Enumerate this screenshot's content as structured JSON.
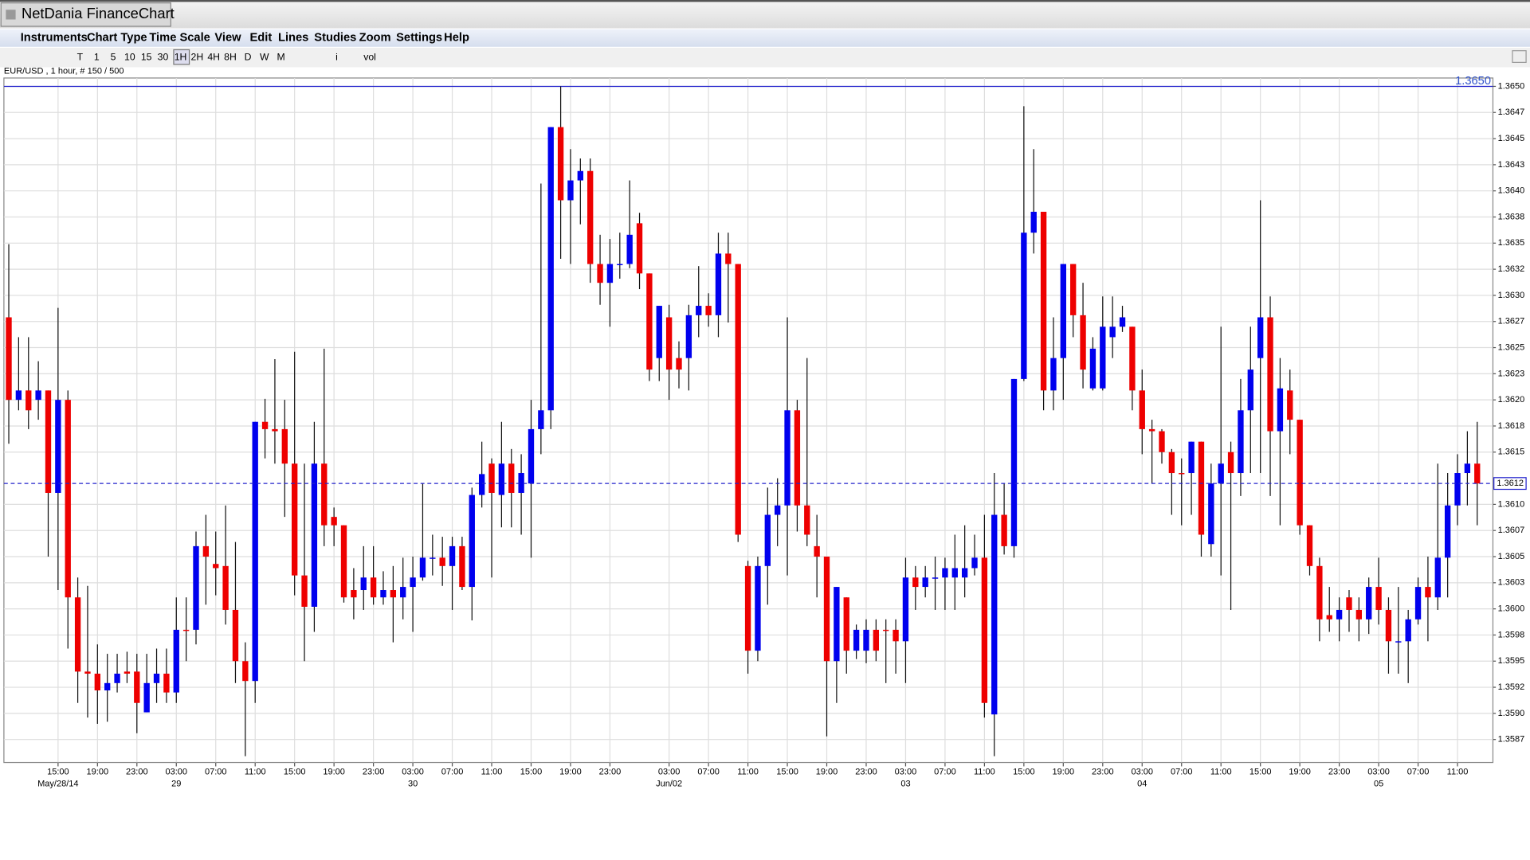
{
  "window": {
    "title": "NetDania FinanceChart"
  },
  "menu": [
    "Instruments",
    "Chart Type",
    "Time Scale",
    "View",
    "Edit",
    "Lines",
    "Studies",
    "Zoom",
    "Settings",
    "Help"
  ],
  "toolbar": [
    "T",
    "1",
    "5",
    "10",
    "15",
    "30",
    "1H",
    "2H",
    "4H",
    "8H",
    "D",
    "W",
    "M",
    "i",
    "vol"
  ],
  "chart_data": {
    "type": "candlestick",
    "subtitle": "EUR/USD , 1 hour, # 150 / 500",
    "up_color": "#0000ee",
    "down_color": "#ee0000",
    "grid": true,
    "ylim": [
      1.35853,
      1.36508
    ],
    "yticks": [
      {
        "value": 1.365,
        "label": "1.3650"
      },
      {
        "value": 1.36475,
        "label": "1.3647"
      },
      {
        "value": 1.3645,
        "label": "1.3645"
      },
      {
        "value": 1.36425,
        "label": "1.3643"
      },
      {
        "value": 1.364,
        "label": "1.3640"
      },
      {
        "value": 1.36375,
        "label": "1.3638"
      },
      {
        "value": 1.3635,
        "label": "1.3635"
      },
      {
        "value": 1.36325,
        "label": "1.3632"
      },
      {
        "value": 1.363,
        "label": "1.3630"
      },
      {
        "value": 1.36275,
        "label": "1.3627"
      },
      {
        "value": 1.3625,
        "label": "1.3625"
      },
      {
        "value": 1.36225,
        "label": "1.3623"
      },
      {
        "value": 1.362,
        "label": "1.3620"
      },
      {
        "value": 1.36175,
        "label": "1.3618"
      },
      {
        "value": 1.3615,
        "label": "1.3615"
      },
      {
        "value": 1.361,
        "label": "1.3610"
      },
      {
        "value": 1.36075,
        "label": "1.3607"
      },
      {
        "value": 1.3605,
        "label": "1.3605"
      },
      {
        "value": 1.36025,
        "label": "1.3603"
      },
      {
        "value": 1.36,
        "label": "1.3600"
      },
      {
        "value": 1.35975,
        "label": "1.3598"
      },
      {
        "value": 1.3595,
        "label": "1.3595"
      },
      {
        "value": 1.35925,
        "label": "1.3592"
      },
      {
        "value": 1.359,
        "label": "1.3590"
      },
      {
        "value": 1.35875,
        "label": "1.3587"
      }
    ],
    "reference_line": {
      "value": 1.365,
      "label": "1.3650"
    },
    "last_price": {
      "value": 1.3612,
      "label": "1.3612"
    },
    "categories": [
      null,
      null,
      null,
      null,
      null,
      "15:00",
      null,
      null,
      null,
      "19:00",
      null,
      null,
      null,
      "23:00",
      null,
      null,
      null,
      "03:00",
      null,
      null,
      null,
      "07:00",
      null,
      null,
      null,
      "11:00",
      null,
      null,
      null,
      "15:00",
      null,
      null,
      null,
      "19:00",
      null,
      null,
      null,
      "23:00",
      null,
      null,
      null,
      "03:00",
      null,
      null,
      null,
      "07:00",
      null,
      null,
      null,
      "11:00",
      null,
      null,
      null,
      "15:00",
      null,
      null,
      null,
      "19:00",
      null,
      null,
      null,
      "23:00",
      null,
      null,
      null,
      null,
      null,
      "03:00",
      null,
      null,
      null,
      "07:00",
      null,
      null,
      null,
      "11:00",
      null,
      null,
      null,
      "15:00",
      null,
      null,
      null,
      "19:00",
      null,
      null,
      null,
      "23:00",
      null,
      null,
      null,
      "03:00",
      null,
      null,
      null,
      "07:00",
      null,
      null,
      null,
      "11:00",
      null,
      null,
      null,
      "15:00",
      null,
      null,
      null,
      "19:00",
      null,
      null,
      null,
      "23:00",
      null,
      null,
      null,
      "03:00",
      null,
      null,
      null,
      "07:00",
      null,
      null,
      null,
      "11:00",
      null,
      null,
      null,
      "15:00",
      null,
      null,
      null,
      "19:00",
      null,
      null,
      null,
      "23:00",
      null,
      null,
      null,
      "03:00",
      null,
      null,
      null,
      "07:00",
      null,
      null,
      null,
      "11:00",
      null,
      null
    ],
    "category_dates": [
      null,
      null,
      null,
      null,
      null,
      "May/28/14",
      null,
      null,
      null,
      null,
      null,
      null,
      null,
      null,
      null,
      null,
      null,
      "29",
      null,
      null,
      null,
      null,
      null,
      null,
      null,
      null,
      null,
      null,
      null,
      null,
      null,
      null,
      null,
      null,
      null,
      null,
      null,
      null,
      null,
      null,
      null,
      "30",
      null,
      null,
      null,
      null,
      null,
      null,
      null,
      null,
      null,
      null,
      null,
      null,
      null,
      null,
      null,
      null,
      null,
      null,
      null,
      null,
      null,
      null,
      null,
      null,
      null,
      "Jun/02",
      null,
      null,
      null,
      null,
      null,
      null,
      null,
      null,
      null,
      null,
      null,
      null,
      null,
      null,
      null,
      null,
      null,
      null,
      null,
      null,
      null,
      null,
      null,
      "03",
      null,
      null,
      null,
      null,
      null,
      null,
      null,
      null,
      null,
      null,
      null,
      null,
      null,
      null,
      null,
      null,
      null,
      null,
      null,
      null,
      null,
      null,
      null,
      "04",
      null,
      null,
      null,
      null,
      null,
      null,
      null,
      null,
      null,
      null,
      null,
      null,
      null,
      null,
      null,
      null,
      null,
      null,
      null,
      null,
      null,
      null,
      null,
      "05",
      null,
      null,
      null,
      null,
      null,
      null,
      null,
      null,
      null,
      null
    ],
    "open": [
      1.36279,
      1.362,
      1.36209,
      1.362,
      1.36209,
      1.36111,
      1.362,
      1.36011,
      1.3594,
      1.35938,
      1.35922,
      1.35929,
      1.3594,
      1.3594,
      1.35901,
      1.35929,
      1.35938,
      1.3592,
      1.3598,
      1.3598,
      1.3606,
      1.36043,
      1.36041,
      1.35999,
      1.3595,
      1.35931,
      1.36179,
      1.36172,
      1.36172,
      1.36139,
      1.36032,
      1.36002,
      1.36139,
      1.36088,
      1.3608,
      1.36018,
      1.36018,
      1.3603,
      1.36011,
      1.36018,
      1.36011,
      1.36021,
      1.3603,
      1.36049,
      1.36049,
      1.36041,
      1.3606,
      1.36021,
      1.36109,
      1.36139,
      1.36109,
      1.36139,
      1.36111,
      1.3612,
      1.36172,
      1.3619,
      1.36461,
      1.36391,
      1.3641,
      1.36419,
      1.3633,
      1.36312,
      1.3633,
      1.3633,
      1.36369,
      1.36321,
      1.3624,
      1.36279,
      1.3624,
      1.3624,
      1.36281,
      1.3629,
      1.36281,
      1.3634,
      1.3633,
      1.36041,
      1.3596,
      1.36041,
      1.3609,
      1.36099,
      1.3619,
      1.36099,
      1.3606,
      1.3605,
      1.3595,
      1.36011,
      1.3596,
      1.3596,
      1.3598,
      1.3598,
      1.3598,
      1.35969,
      1.3603,
      1.36021,
      1.3603,
      1.3603,
      1.3603,
      1.3603,
      1.36039,
      1.36049,
      1.35899,
      1.3609,
      1.3606,
      1.3622,
      1.3636,
      1.3638,
      1.36209,
      1.3624,
      1.3633,
      1.36281,
      1.36211,
      1.36211,
      1.3626,
      1.3627,
      1.3627,
      1.36209,
      1.36172,
      1.3617,
      1.3615,
      1.3613,
      1.3613,
      1.3616,
      1.36062,
      1.3612,
      1.3615,
      1.3613,
      1.3619,
      1.3624,
      1.36279,
      1.3617,
      1.36209,
      1.36181,
      1.3608,
      1.36041,
      1.35994,
      1.3599,
      1.36011,
      1.35999,
      1.3599,
      1.36021,
      1.35999,
      1.35969,
      1.35969,
      1.3599,
      1.36021,
      1.36011,
      1.36049,
      1.36099,
      1.3613,
      1.36139
    ],
    "high": [
      1.36349,
      1.3626,
      1.3626,
      1.36237,
      1.36209,
      1.36288,
      1.36209,
      1.3603,
      1.36022,
      1.35966,
      1.35957,
      1.35957,
      1.35959,
      1.35957,
      1.35957,
      1.35962,
      1.35962,
      1.36011,
      1.36011,
      1.36074,
      1.3609,
      1.36074,
      1.36099,
      1.36064,
      1.35968,
      1.36179,
      1.36201,
      1.36239,
      1.362,
      1.36246,
      1.36139,
      1.36179,
      1.36249,
      1.36097,
      1.3608,
      1.36039,
      1.3606,
      1.3606,
      1.36036,
      1.36041,
      1.36049,
      1.3605,
      1.3612,
      1.36071,
      1.36069,
      1.36069,
      1.36069,
      1.36116,
      1.3616,
      1.36144,
      1.36179,
      1.36153,
      1.36148,
      1.362,
      1.36407,
      1.36461,
      1.365,
      1.3644,
      1.36431,
      1.36431,
      1.36358,
      1.36354,
      1.3636,
      1.3641,
      1.36379,
      1.36321,
      1.3629,
      1.36291,
      1.36256,
      1.36291,
      1.36328,
      1.36302,
      1.3636,
      1.3636,
      1.3633,
      1.36046,
      1.3605,
      1.36116,
      1.36125,
      1.36279,
      1.362,
      1.3624,
      1.3609,
      1.3605,
      1.36021,
      1.36011,
      1.35985,
      1.3599,
      1.3599,
      1.3599,
      1.3599,
      1.36049,
      1.36041,
      1.36041,
      1.3605,
      1.36049,
      1.36071,
      1.3608,
      1.36071,
      1.3609,
      1.3613,
      1.3612,
      1.3622,
      1.36481,
      1.3644,
      1.3638,
      1.36279,
      1.3633,
      1.3633,
      1.36312,
      1.3626,
      1.36299,
      1.36299,
      1.3629,
      1.3627,
      1.36229,
      1.36181,
      1.36172,
      1.36153,
      1.36144,
      1.3616,
      1.3616,
      1.36139,
      1.3627,
      1.3616,
      1.3622,
      1.3627,
      1.36391,
      1.36299,
      1.3624,
      1.36229,
      1.36181,
      1.3608,
      1.36049,
      1.36021,
      1.36011,
      1.36018,
      1.36011,
      1.3603,
      1.36049,
      1.36011,
      1.36021,
      1.35999,
      1.3603,
      1.3605,
      1.36139,
      1.3613,
      1.36148,
      1.3617,
      1.36179
    ],
    "low": [
      1.36158,
      1.3619,
      1.36172,
      1.36181,
      1.3605,
      1.36018,
      1.35962,
      1.3591,
      1.35896,
      1.3589,
      1.35892,
      1.3592,
      1.35929,
      1.35881,
      1.35901,
      1.3591,
      1.3591,
      1.3591,
      1.3595,
      1.35966,
      1.36004,
      1.36013,
      1.35985,
      1.35929,
      1.35859,
      1.3591,
      1.36144,
      1.36139,
      1.36088,
      1.36013,
      1.3595,
      1.35978,
      1.3606,
      1.3606,
      1.36006,
      1.3599,
      1.35999,
      1.36004,
      1.36004,
      1.35968,
      1.3599,
      1.35978,
      1.36027,
      1.36032,
      1.36022,
      1.35999,
      1.36018,
      1.35989,
      1.36097,
      1.3603,
      1.36078,
      1.36078,
      1.36071,
      1.36049,
      1.36148,
      1.36172,
      1.36335,
      1.3633,
      1.36368,
      1.36312,
      1.36291,
      1.3627,
      1.36316,
      1.36326,
      1.36306,
      1.36218,
      1.36218,
      1.362,
      1.36211,
      1.36209,
      1.3626,
      1.3627,
      1.3626,
      1.36274,
      1.36064,
      1.35938,
      1.3595,
      1.36004,
      1.3606,
      1.36032,
      1.36074,
      1.3606,
      1.36011,
      1.35878,
      1.3591,
      1.35938,
      1.35952,
      1.35948,
      1.3595,
      1.35929,
      1.35938,
      1.35929,
      1.35999,
      1.36011,
      1.35999,
      1.35999,
      1.35999,
      1.36011,
      1.36032,
      1.35896,
      1.35859,
      1.36052,
      1.36049,
      1.36218,
      1.3634,
      1.3619,
      1.3619,
      1.362,
      1.3626,
      1.36211,
      1.36209,
      1.36209,
      1.3624,
      1.36265,
      1.3619,
      1.36148,
      1.3612,
      1.36139,
      1.3609,
      1.3608,
      1.3609,
      1.3605,
      1.3605,
      1.36032,
      1.35999,
      1.36108,
      1.3613,
      1.3613,
      1.36108,
      1.3608,
      1.36148,
      1.36071,
      1.36032,
      1.35969,
      1.35978,
      1.35969,
      1.35978,
      1.35969,
      1.35976,
      1.35985,
      1.35938,
      1.35938,
      1.35929,
      1.35985,
      1.35969,
      1.35999,
      1.36011,
      1.3608,
      1.36099,
      1.3608
    ],
    "close": [
      1.362,
      1.36209,
      1.3619,
      1.36209,
      1.36111,
      1.362,
      1.36011,
      1.3594,
      1.35938,
      1.35922,
      1.35929,
      1.35938,
      1.35938,
      1.3591,
      1.35929,
      1.35938,
      1.3592,
      1.3598,
      1.35979,
      1.3606,
      1.3605,
      1.36039,
      1.35999,
      1.3595,
      1.35931,
      1.36179,
      1.36172,
      1.3617,
      1.36139,
      1.36032,
      1.36002,
      1.36139,
      1.3608,
      1.3608,
      1.36011,
      1.36011,
      1.3603,
      1.36011,
      1.36018,
      1.36011,
      1.36021,
      1.3603,
      1.36049,
      1.36049,
      1.36041,
      1.3606,
      1.36021,
      1.36109,
      1.36129,
      1.36111,
      1.36139,
      1.36111,
      1.3613,
      1.36172,
      1.3619,
      1.36461,
      1.36391,
      1.3641,
      1.36419,
      1.3633,
      1.36312,
      1.3633,
      1.3633,
      1.36358,
      1.36321,
      1.36229,
      1.3629,
      1.36229,
      1.36229,
      1.36281,
      1.3629,
      1.36281,
      1.3634,
      1.3633,
      1.36071,
      1.3596,
      1.36041,
      1.3609,
      1.36099,
      1.3619,
      1.36099,
      1.36071,
      1.3605,
      1.3595,
      1.36021,
      1.3596,
      1.3598,
      1.3598,
      1.3596,
      1.35979,
      1.35969,
      1.3603,
      1.36021,
      1.3603,
      1.3603,
      1.36039,
      1.36039,
      1.36039,
      1.36049,
      1.3591,
      1.3609,
      1.3606,
      1.3622,
      1.3636,
      1.3638,
      1.36209,
      1.3624,
      1.3633,
      1.36281,
      1.36229,
      1.36249,
      1.3627,
      1.3627,
      1.36279,
      1.36209,
      1.36172,
      1.3617,
      1.3615,
      1.3613,
      1.36129,
      1.3616,
      1.36071,
      1.3612,
      1.36139,
      1.3613,
      1.3619,
      1.36229,
      1.36279,
      1.3617,
      1.36211,
      1.36181,
      1.3608,
      1.36041,
      1.3599,
      1.3599,
      1.35999,
      1.35999,
      1.3599,
      1.36021,
      1.35999,
      1.35969,
      1.35969,
      1.3599,
      1.36021,
      1.36011,
      1.36049,
      1.36099,
      1.3613,
      1.36139,
      1.3612
    ]
  }
}
